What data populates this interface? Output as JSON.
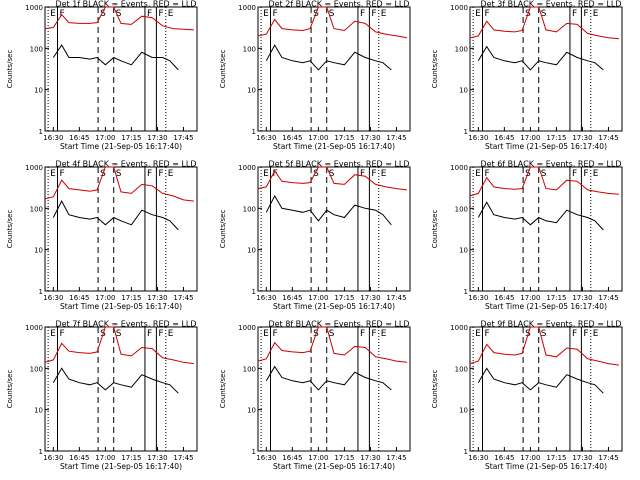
{
  "chart_data": {
    "type": "line",
    "yscale": "log",
    "ylim": [
      1,
      1000
    ],
    "yticks": [
      1,
      10,
      100,
      1000
    ],
    "xlim_minutes": [
      16.42,
      17.88
    ],
    "xticks": [
      {
        "label": "16:30",
        "t": 16.5
      },
      {
        "label": "16:45",
        "t": 16.75
      },
      {
        "label": "17:00",
        "t": 17.0
      },
      {
        "label": "17:15",
        "t": 17.25
      },
      {
        "label": "17:30",
        "t": 17.5
      },
      {
        "label": "17:45",
        "t": 17.75
      }
    ],
    "ylabel": "Counts/sec",
    "xlabel": "Start Time (21-Sep-05 16:17:40)",
    "event_markers": [
      {
        "label": "E",
        "t": 16.45,
        "style": "dotted"
      },
      {
        "label": "F",
        "t": 16.54,
        "style": "solid"
      },
      {
        "label": "S",
        "t": 16.93,
        "style": "dashed"
      },
      {
        "label": "S",
        "t": 17.08,
        "style": "dashed"
      },
      {
        "label": "F",
        "t": 17.38,
        "style": "solid"
      },
      {
        "label": "F",
        "t": 17.49,
        "style": "solid"
      },
      {
        "label": "E",
        "t": 17.58,
        "style": "dotted"
      }
    ],
    "series_style": {
      "events_color": "#000000",
      "lld_color": "#cc0000"
    },
    "panels": [
      {
        "title": "Det 1f BLACK = Events, RED = LLD",
        "red": {
          "x": [
            16.42,
            16.5,
            16.58,
            16.65,
            16.75,
            16.85,
            16.92,
            17.0,
            17.08,
            17.15,
            17.25,
            17.35,
            17.45,
            17.55,
            17.65,
            17.75,
            17.85
          ],
          "y": [
            300,
            320,
            650,
            420,
            400,
            400,
            420,
            1000,
            1000,
            400,
            380,
            600,
            550,
            350,
            300,
            290,
            280
          ]
        },
        "black": {
          "x": [
            16.5,
            16.58,
            16.65,
            16.75,
            16.85,
            16.92,
            17.0,
            17.08,
            17.15,
            17.25,
            17.35,
            17.45,
            17.55,
            17.62,
            17.7
          ],
          "y": [
            60,
            120,
            60,
            60,
            55,
            60,
            40,
            60,
            50,
            40,
            80,
            60,
            60,
            50,
            30
          ]
        }
      },
      {
        "title": "Det 2f BLACK = Events, RED = LLD",
        "red": {
          "x": [
            16.42,
            16.5,
            16.58,
            16.65,
            16.75,
            16.85,
            16.92,
            17.0,
            17.08,
            17.15,
            17.25,
            17.35,
            17.45,
            17.55,
            17.65,
            17.75,
            17.85
          ],
          "y": [
            200,
            220,
            500,
            300,
            280,
            270,
            300,
            1000,
            1000,
            300,
            270,
            450,
            400,
            250,
            220,
            200,
            180
          ]
        },
        "black": {
          "x": [
            16.5,
            16.58,
            16.65,
            16.75,
            16.85,
            16.92,
            17.0,
            17.08,
            17.15,
            17.25,
            17.35,
            17.45,
            17.55,
            17.62,
            17.7
          ],
          "y": [
            50,
            120,
            60,
            50,
            45,
            50,
            30,
            50,
            45,
            40,
            80,
            60,
            50,
            45,
            30
          ]
        }
      },
      {
        "title": "Det 3f BLACK = Events, RED = LLD",
        "red": {
          "x": [
            16.42,
            16.5,
            16.58,
            16.65,
            16.75,
            16.85,
            16.92,
            17.0,
            17.08,
            17.15,
            17.25,
            17.35,
            17.45,
            17.55,
            17.65,
            17.75,
            17.85
          ],
          "y": [
            180,
            200,
            450,
            280,
            260,
            250,
            270,
            1000,
            1000,
            280,
            250,
            400,
            380,
            230,
            200,
            180,
            170
          ]
        },
        "black": {
          "x": [
            16.5,
            16.58,
            16.65,
            16.75,
            16.85,
            16.92,
            17.0,
            17.08,
            17.15,
            17.25,
            17.35,
            17.45,
            17.55,
            17.62,
            17.7
          ],
          "y": [
            50,
            110,
            60,
            50,
            45,
            50,
            30,
            50,
            45,
            40,
            80,
            60,
            50,
            45,
            30
          ]
        }
      },
      {
        "title": "Det 4f BLACK = Events, RED = LLD",
        "red": {
          "x": [
            16.42,
            16.5,
            16.58,
            16.65,
            16.75,
            16.85,
            16.92,
            17.0,
            17.08,
            17.15,
            17.25,
            17.35,
            17.45,
            17.55,
            17.65,
            17.75,
            17.85
          ],
          "y": [
            170,
            190,
            480,
            300,
            280,
            260,
            280,
            1000,
            1000,
            250,
            230,
            380,
            350,
            230,
            200,
            160,
            150
          ]
        },
        "black": {
          "x": [
            16.5,
            16.58,
            16.65,
            16.75,
            16.85,
            16.92,
            17.0,
            17.08,
            17.15,
            17.25,
            17.35,
            17.45,
            17.55,
            17.62,
            17.7
          ],
          "y": [
            60,
            150,
            70,
            60,
            55,
            60,
            40,
            60,
            50,
            40,
            90,
            70,
            60,
            50,
            30
          ]
        }
      },
      {
        "title": "Det 5f BLACK = Events, RED = LLD",
        "red": {
          "x": [
            16.42,
            16.5,
            16.58,
            16.65,
            16.75,
            16.85,
            16.92,
            17.0,
            17.08,
            17.15,
            17.25,
            17.35,
            17.45,
            17.55,
            17.65,
            17.75,
            17.85
          ],
          "y": [
            300,
            330,
            800,
            450,
            420,
            400,
            420,
            1000,
            1000,
            400,
            380,
            650,
            600,
            380,
            330,
            300,
            280
          ]
        },
        "black": {
          "x": [
            16.5,
            16.58,
            16.65,
            16.75,
            16.85,
            16.92,
            17.0,
            17.08,
            17.15,
            17.25,
            17.35,
            17.45,
            17.55,
            17.62,
            17.7
          ],
          "y": [
            80,
            200,
            100,
            90,
            80,
            90,
            50,
            90,
            70,
            60,
            120,
            100,
            90,
            70,
            40
          ]
        }
      },
      {
        "title": "Det 6f BLACK = Events, RED = LLD",
        "red": {
          "x": [
            16.42,
            16.5,
            16.58,
            16.65,
            16.75,
            16.85,
            16.92,
            17.0,
            17.08,
            17.15,
            17.25,
            17.35,
            17.45,
            17.55,
            17.65,
            17.75,
            17.85
          ],
          "y": [
            200,
            230,
            550,
            330,
            300,
            290,
            300,
            1000,
            1000,
            300,
            280,
            480,
            450,
            280,
            250,
            230,
            220
          ]
        },
        "black": {
          "x": [
            16.5,
            16.58,
            16.65,
            16.75,
            16.85,
            16.92,
            17.0,
            17.08,
            17.15,
            17.25,
            17.35,
            17.45,
            17.55,
            17.62,
            17.7
          ],
          "y": [
            60,
            140,
            70,
            60,
            55,
            60,
            40,
            60,
            50,
            45,
            90,
            70,
            60,
            50,
            30
          ]
        }
      },
      {
        "title": "Det 7f BLACK = Events, RED = LLD",
        "red": {
          "x": [
            16.42,
            16.5,
            16.58,
            16.65,
            16.75,
            16.85,
            16.92,
            17.0,
            17.08,
            17.15,
            17.25,
            17.35,
            17.45,
            17.55,
            17.65,
            17.75,
            17.85
          ],
          "y": [
            140,
            160,
            400,
            260,
            240,
            230,
            250,
            1000,
            1000,
            220,
            200,
            320,
            300,
            180,
            160,
            140,
            130
          ]
        },
        "black": {
          "x": [
            16.5,
            16.58,
            16.65,
            16.75,
            16.85,
            16.92,
            17.0,
            17.08,
            17.15,
            17.25,
            17.35,
            17.45,
            17.55,
            17.62,
            17.7
          ],
          "y": [
            45,
            100,
            55,
            45,
            40,
            45,
            30,
            45,
            40,
            35,
            70,
            55,
            45,
            40,
            25
          ]
        }
      },
      {
        "title": "Det 8f BLACK = Events, RED = LLD",
        "red": {
          "x": [
            16.42,
            16.5,
            16.58,
            16.65,
            16.75,
            16.85,
            16.92,
            17.0,
            17.08,
            17.15,
            17.25,
            17.35,
            17.45,
            17.55,
            17.65,
            17.75,
            17.85
          ],
          "y": [
            150,
            170,
            420,
            270,
            250,
            240,
            260,
            1000,
            1000,
            230,
            210,
            340,
            320,
            190,
            170,
            150,
            140
          ]
        },
        "black": {
          "x": [
            16.5,
            16.58,
            16.65,
            16.75,
            16.85,
            16.92,
            17.0,
            17.08,
            17.15,
            17.25,
            17.35,
            17.45,
            17.55,
            17.62,
            17.7
          ],
          "y": [
            50,
            110,
            60,
            50,
            45,
            50,
            30,
            50,
            45,
            40,
            80,
            60,
            50,
            45,
            30
          ]
        }
      },
      {
        "title": "Det 9f BLACK = Events, RED = LLD",
        "red": {
          "x": [
            16.42,
            16.5,
            16.58,
            16.65,
            16.75,
            16.85,
            16.92,
            17.0,
            17.08,
            17.15,
            17.25,
            17.35,
            17.45,
            17.55,
            17.65,
            17.75,
            17.85
          ],
          "y": [
            130,
            150,
            380,
            240,
            220,
            210,
            230,
            1000,
            1000,
            210,
            190,
            310,
            290,
            170,
            150,
            130,
            120
          ]
        },
        "black": {
          "x": [
            16.5,
            16.58,
            16.65,
            16.75,
            16.85,
            16.92,
            17.0,
            17.08,
            17.15,
            17.25,
            17.35,
            17.45,
            17.55,
            17.62,
            17.7
          ],
          "y": [
            45,
            100,
            55,
            45,
            40,
            45,
            30,
            45,
            40,
            35,
            70,
            55,
            45,
            40,
            25
          ]
        }
      }
    ]
  }
}
